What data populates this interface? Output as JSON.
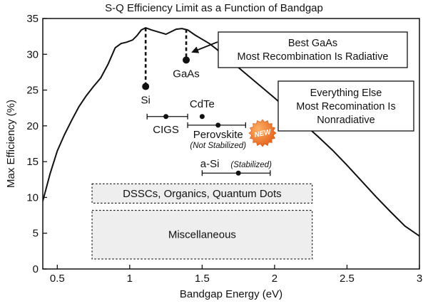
{
  "chart_data": {
    "type": "line",
    "title": "S-Q Efficiency Limit as a Function of Bandgap",
    "xlabel": "Bandgap Energy (eV)",
    "ylabel": "Max Efficiency (%)",
    "xlim": [
      0.4,
      3.0
    ],
    "ylim": [
      0,
      35
    ],
    "xticks": [
      0.5,
      1,
      1.5,
      2,
      2.5,
      3
    ],
    "xtick_labels": [
      "0.5",
      "1",
      "1.5",
      "2",
      "2.5",
      "3"
    ],
    "yticks": [
      0,
      5,
      10,
      15,
      20,
      25,
      30,
      35
    ],
    "ytick_labels": [
      "0",
      "5",
      "10",
      "15",
      "20",
      "25",
      "30",
      "35"
    ],
    "grid": false,
    "series": [
      {
        "x": [
          0.4,
          0.45,
          0.5,
          0.55,
          0.6,
          0.65,
          0.7,
          0.75,
          0.8,
          0.85,
          0.9,
          0.94,
          0.98,
          1.02,
          1.05,
          1.08,
          1.11,
          1.15,
          1.2,
          1.25,
          1.28,
          1.32,
          1.36,
          1.4,
          1.45,
          1.5,
          1.55,
          1.6,
          1.7,
          1.8,
          1.9,
          2.0,
          2.1,
          2.2,
          2.3,
          2.4,
          2.5,
          2.6,
          2.7,
          2.8,
          2.9,
          3.0
        ],
        "y": [
          9.5,
          13.3,
          16.5,
          18.8,
          20.8,
          22.7,
          24.2,
          25.5,
          26.7,
          28.6,
          30.9,
          31.5,
          31.7,
          32.0,
          32.6,
          33.4,
          33.7,
          33.4,
          33.1,
          32.8,
          33.1,
          33.5,
          33.6,
          33.4,
          32.7,
          32.1,
          31.5,
          30.7,
          29.0,
          27.3,
          25.6,
          23.9,
          22.1,
          20.3,
          18.5,
          16.6,
          14.5,
          12.3,
          10.1,
          8.0,
          6.0,
          4.6
        ]
      }
    ],
    "limit_drops": [
      {
        "x": 1.11,
        "y_top": 33.7,
        "y_bottom": 25.5
      },
      {
        "x": 1.39,
        "y_top": 33.5,
        "y_bottom": 29.2
      }
    ],
    "points": [
      {
        "label": "Si",
        "x": 1.11,
        "y": 25.5
      },
      {
        "label": "GaAs",
        "x": 1.39,
        "y": 29.2
      },
      {
        "label": "CdTe",
        "x": 1.5,
        "y": 21.3
      },
      {
        "label": "CIGS",
        "x": 1.25,
        "y": 21.3,
        "xmin": 1.12,
        "xmax": 1.4
      },
      {
        "label": "Perovskite",
        "sublabel": "(Not Stabilized)",
        "x": 1.61,
        "y": 20.1,
        "xmin": 1.4,
        "xmax": 1.8,
        "badge": "NEW"
      },
      {
        "label": "a-Si",
        "sublabel": "(Stabilized)",
        "x": 1.75,
        "y": 13.4,
        "xmin": 1.5,
        "xmax": 1.97
      }
    ],
    "callouts": [
      {
        "lines": [
          "Best GaAs",
          "Most Recombination Is Radiative"
        ]
      },
      {
        "lines": [
          "Everything Else",
          "Most Recomination Is",
          "Nonradiative"
        ]
      }
    ],
    "regions": [
      {
        "label": "DSSCs, Organics, Quantum Dots",
        "xmin": 0.74,
        "xmax": 2.26,
        "ymin": 9.2,
        "ymax": 11.9
      },
      {
        "label": "Miscellaneous",
        "xmin": 0.74,
        "xmax": 2.26,
        "ymin": 1.4,
        "ymax": 8.2
      }
    ]
  }
}
